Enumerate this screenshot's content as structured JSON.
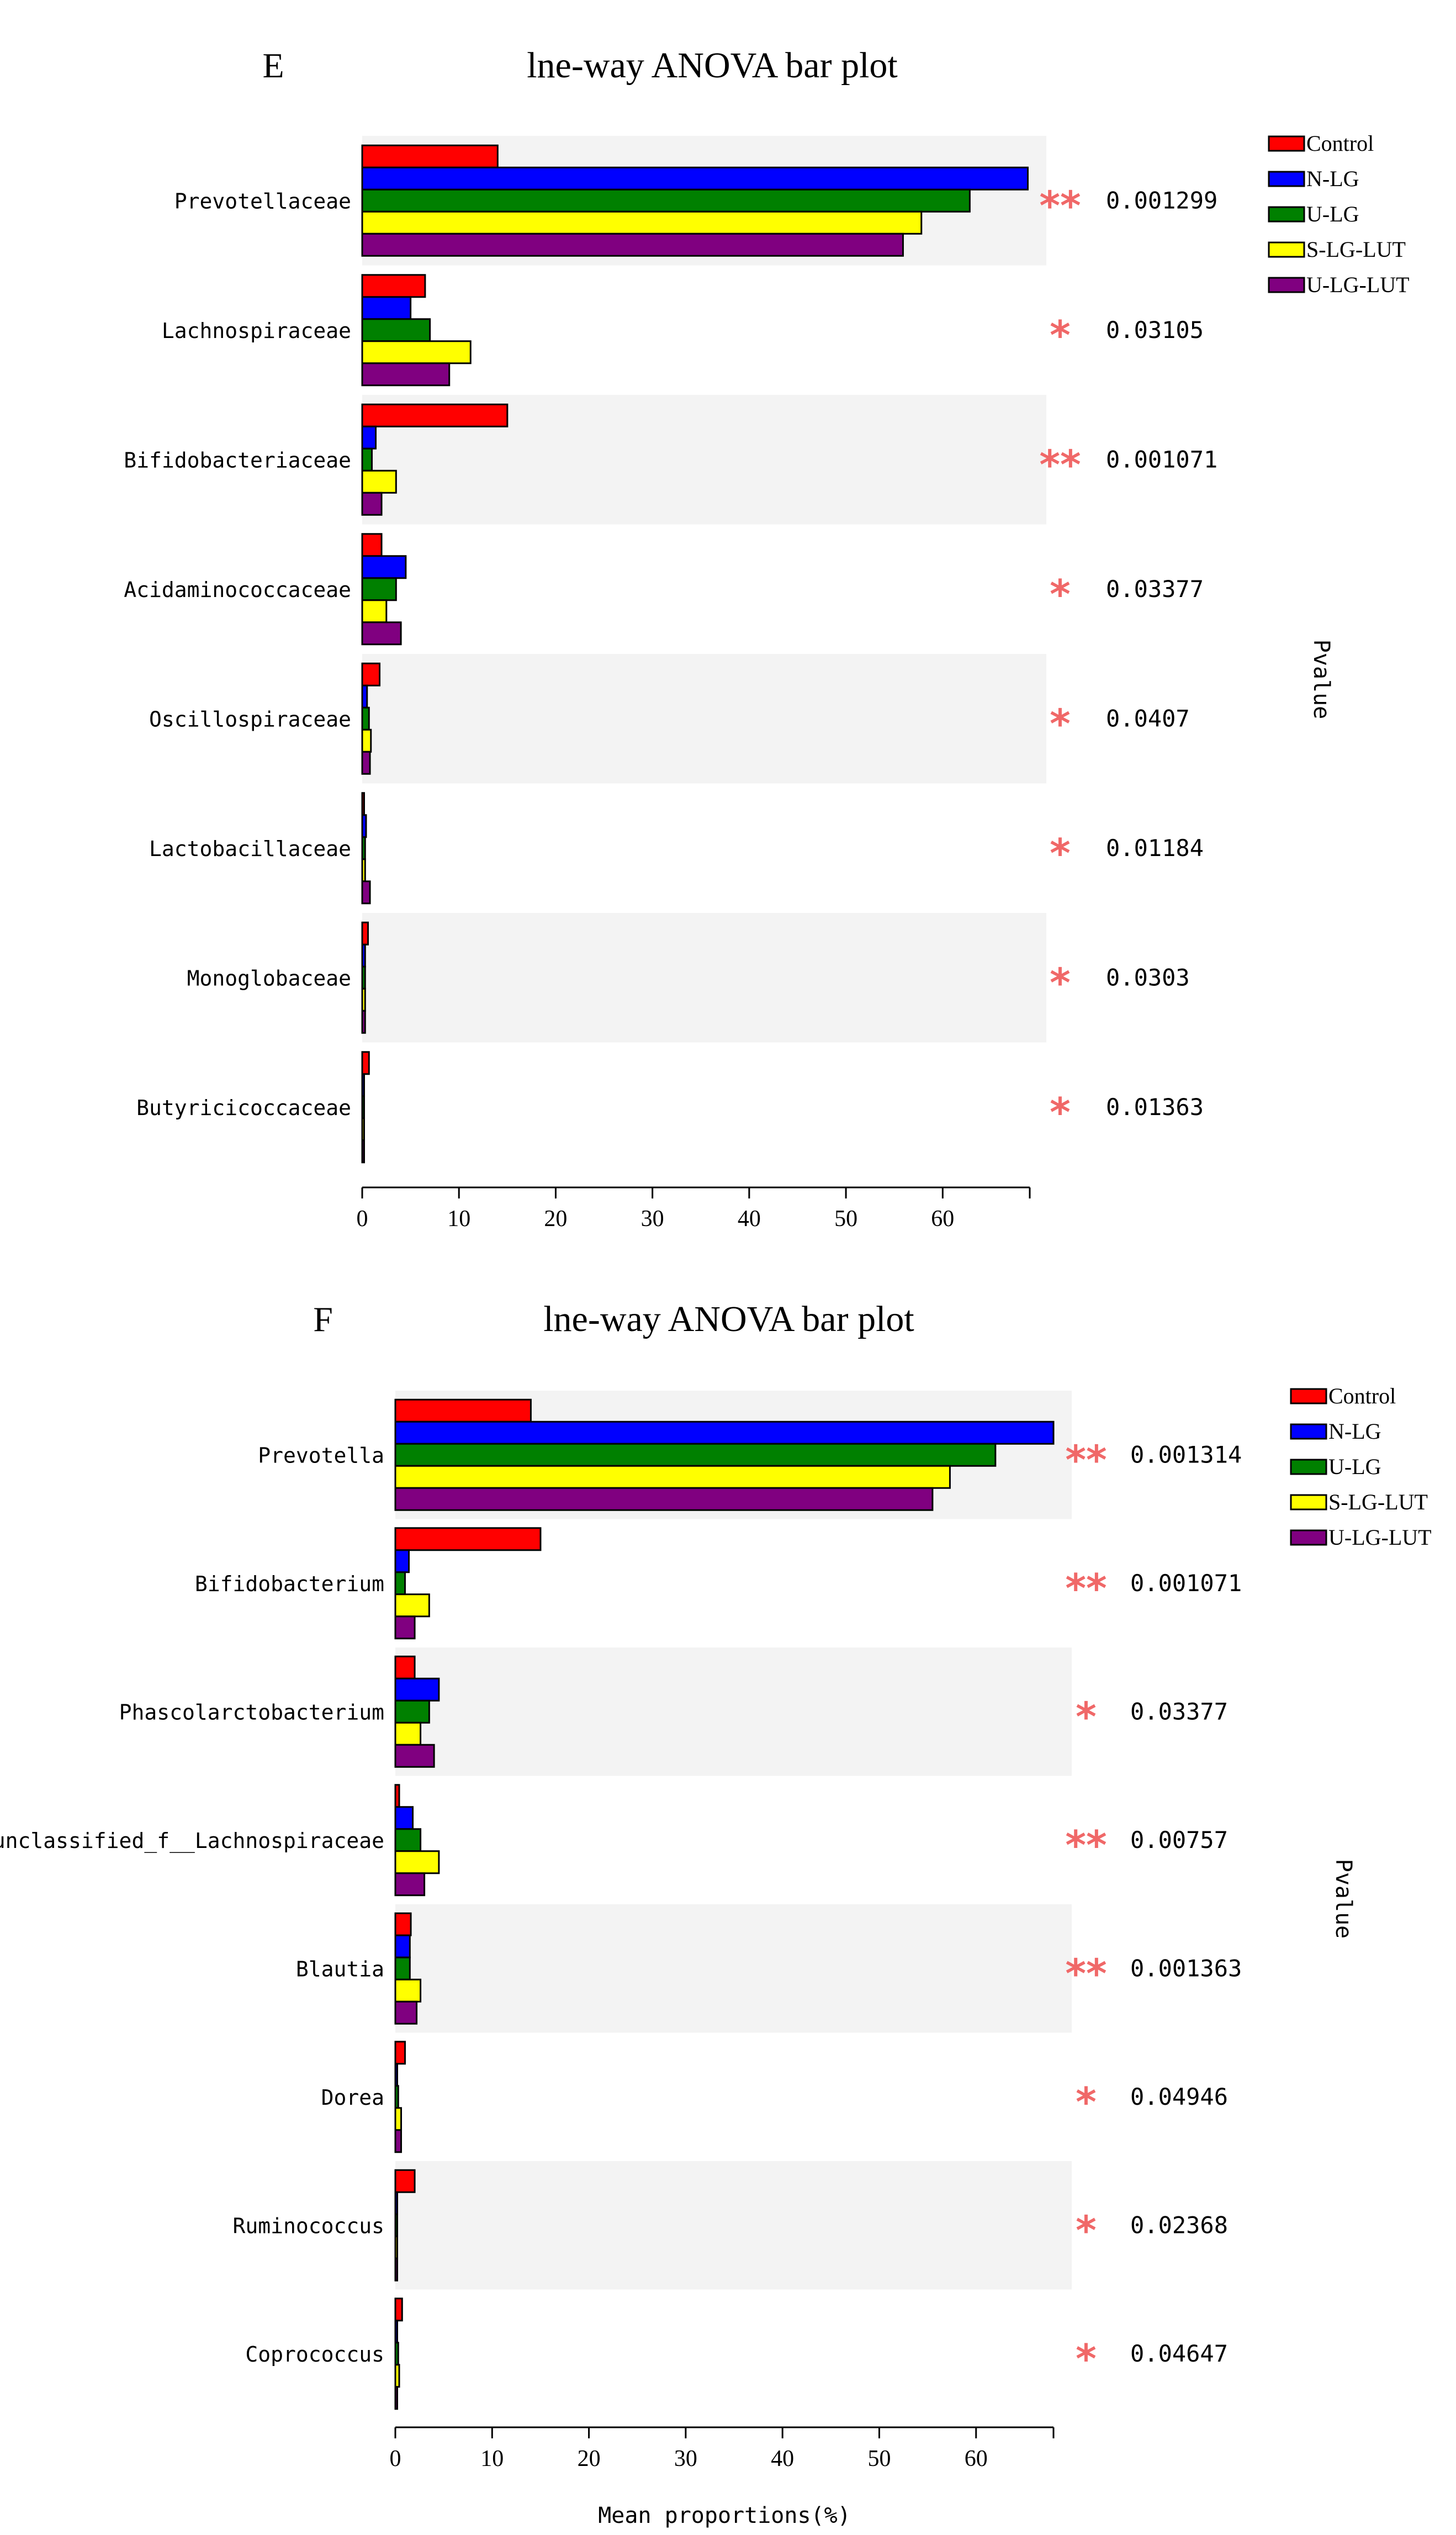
{
  "legend": [
    {
      "name": "Control",
      "color": "#ff0000"
    },
    {
      "name": "N-LG",
      "color": "#0000ff"
    },
    {
      "name": "U-LG",
      "color": "#008000"
    },
    {
      "name": "S-LG-LUT",
      "color": "#ffff00"
    },
    {
      "name": "U-LG-LUT",
      "color": "#800080"
    }
  ],
  "chart_data": [
    {
      "type": "bar",
      "orientation": "horizontal",
      "panel": "E",
      "title": "lne-way ANOVA bar plot",
      "xlabel": "",
      "right_label": "Pvalue",
      "xlim": [
        0,
        69
      ],
      "xticks": [
        0,
        10,
        20,
        30,
        40,
        50,
        60
      ],
      "categories": [
        "Prevotellaceae",
        "Lachnospiraceae",
        "Bifidobacteriaceae",
        "Acidaminococcaceae",
        "Oscillospiraceae",
        "Lactobacillaceae",
        "Monoglobaceae",
        "Butyricicoccaceae"
      ],
      "series": [
        {
          "name": "Control",
          "values": [
            14.0,
            6.5,
            15.0,
            2.0,
            1.8,
            0.2,
            0.6,
            0.7
          ]
        },
        {
          "name": "N-LG",
          "values": [
            68.8,
            5.0,
            1.4,
            4.5,
            0.5,
            0.4,
            0.3,
            0.2
          ]
        },
        {
          "name": "U-LG",
          "values": [
            62.8,
            7.0,
            1.0,
            3.5,
            0.7,
            0.3,
            0.3,
            0.2
          ]
        },
        {
          "name": "S-LG-LUT",
          "values": [
            57.8,
            11.2,
            3.5,
            2.5,
            0.9,
            0.3,
            0.3,
            0.2
          ]
        },
        {
          "name": "U-LG-LUT",
          "values": [
            55.9,
            9.0,
            2.0,
            4.0,
            0.8,
            0.8,
            0.3,
            0.2
          ]
        }
      ],
      "significance": [
        "**",
        "*",
        "**",
        "*",
        "*",
        "*",
        "*",
        "*"
      ],
      "pvalues": [
        "0.001299",
        "0.03105",
        "0.001071",
        "0.03377",
        "0.0407",
        "0.01184",
        "0.0303",
        "0.01363"
      ]
    },
    {
      "type": "bar",
      "orientation": "horizontal",
      "panel": "F",
      "title": "lne-way ANOVA bar plot",
      "xlabel": "Mean proportions(%)",
      "right_label": "Pvalue",
      "xlim": [
        0,
        68
      ],
      "xticks": [
        0,
        10,
        20,
        30,
        40,
        50,
        60
      ],
      "categories": [
        "Prevotella",
        "Bifidobacterium",
        "Phascolarctobacterium",
        "unclassified_f__Lachnospiraceae",
        "Blautia",
        "Dorea",
        "Ruminococcus",
        "Coprococcus"
      ],
      "series": [
        {
          "name": "Control",
          "values": [
            14.0,
            15.0,
            2.0,
            0.4,
            1.6,
            1.0,
            2.0,
            0.7
          ]
        },
        {
          "name": "N-LG",
          "values": [
            68.0,
            1.4,
            4.5,
            1.8,
            1.5,
            0.2,
            0.2,
            0.2
          ]
        },
        {
          "name": "U-LG",
          "values": [
            62.0,
            1.0,
            3.5,
            2.6,
            1.5,
            0.3,
            0.2,
            0.3
          ]
        },
        {
          "name": "S-LG-LUT",
          "values": [
            57.3,
            3.5,
            2.6,
            4.5,
            2.6,
            0.6,
            0.2,
            0.4
          ]
        },
        {
          "name": "U-LG-LUT",
          "values": [
            55.5,
            2.0,
            4.0,
            3.0,
            2.2,
            0.6,
            0.2,
            0.2
          ]
        }
      ],
      "significance": [
        "**",
        "**",
        "*",
        "**",
        "**",
        "*",
        "*",
        "*"
      ],
      "pvalues": [
        "0.001314",
        "0.001071",
        "0.03377",
        "0.00757",
        "0.001363",
        "0.04946",
        "0.02368",
        "0.04647"
      ]
    }
  ]
}
